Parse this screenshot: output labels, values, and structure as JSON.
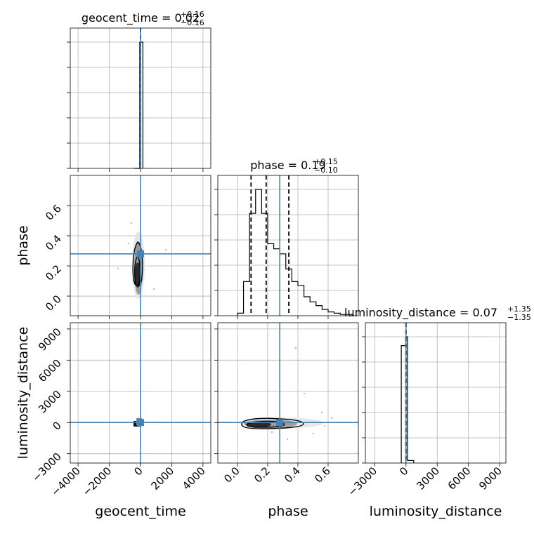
{
  "chart_data": {
    "type": "corner",
    "parameters": [
      {
        "name": "geocent_time",
        "xlabel": "geocent_time",
        "median": "0.02",
        "plus": "+0.16",
        "minus": "−0.16",
        "truth": 0,
        "range": [
          -4500,
          4500
        ],
        "ticks": [
          -4000,
          -2000,
          0,
          2000,
          4000
        ],
        "tick_labels": [
          "−4000",
          "−2000",
          "0",
          "2000",
          "4000"
        ],
        "quantiles": [
          -0.14,
          0.02,
          0.18
        ],
        "hist": {
          "edges": [
            -400,
            -50,
            150
          ],
          "counts": [
            0,
            1.0
          ]
        }
      },
      {
        "name": "phase",
        "xlabel": "phase",
        "ylabel": "phase",
        "median": "0.19",
        "plus": "+0.15",
        "minus": "−0.10",
        "truth": 0.28,
        "range": [
          -0.13,
          0.8
        ],
        "ticks": [
          0.0,
          0.2,
          0.4,
          0.6
        ],
        "tick_labels": [
          "0.0",
          "0.2",
          "0.4",
          "0.6"
        ],
        "quantiles": [
          0.09,
          0.19,
          0.34
        ],
        "hist": {
          "edges": [
            0.0,
            0.04,
            0.08,
            0.12,
            0.16,
            0.2,
            0.24,
            0.28,
            0.32,
            0.36,
            0.4,
            0.44,
            0.48,
            0.52,
            0.56,
            0.6,
            0.64,
            0.68,
            0.72,
            0.76
          ],
          "counts": [
            0.02,
            0.27,
            0.81,
            1.0,
            0.81,
            0.57,
            0.53,
            0.49,
            0.37,
            0.27,
            0.24,
            0.15,
            0.11,
            0.08,
            0.05,
            0.03,
            0.02,
            0.01,
            0.01
          ]
        }
      },
      {
        "name": "luminosity_distance",
        "xlabel": "luminosity_distance",
        "ylabel": "luminosity_distance",
        "median": "0.07",
        "plus": "+1.35",
        "minus": "−1.35",
        "truth": 0,
        "range": [
          -3900,
          9600
        ],
        "ticks": [
          -3000,
          0,
          3000,
          6000,
          9000
        ],
        "tick_labels": [
          "−3000",
          "0",
          "3000",
          "6000",
          "9000"
        ],
        "quantiles": [
          -1.28,
          0.07,
          1.42
        ],
        "hist": {
          "edges": [
            -450,
            -20,
            150,
            750
          ],
          "counts": [
            0.93,
            1.0,
            0.02
          ]
        }
      }
    ],
    "grid": true,
    "truth_color": "#4682b4",
    "hist_color": "#000000"
  }
}
